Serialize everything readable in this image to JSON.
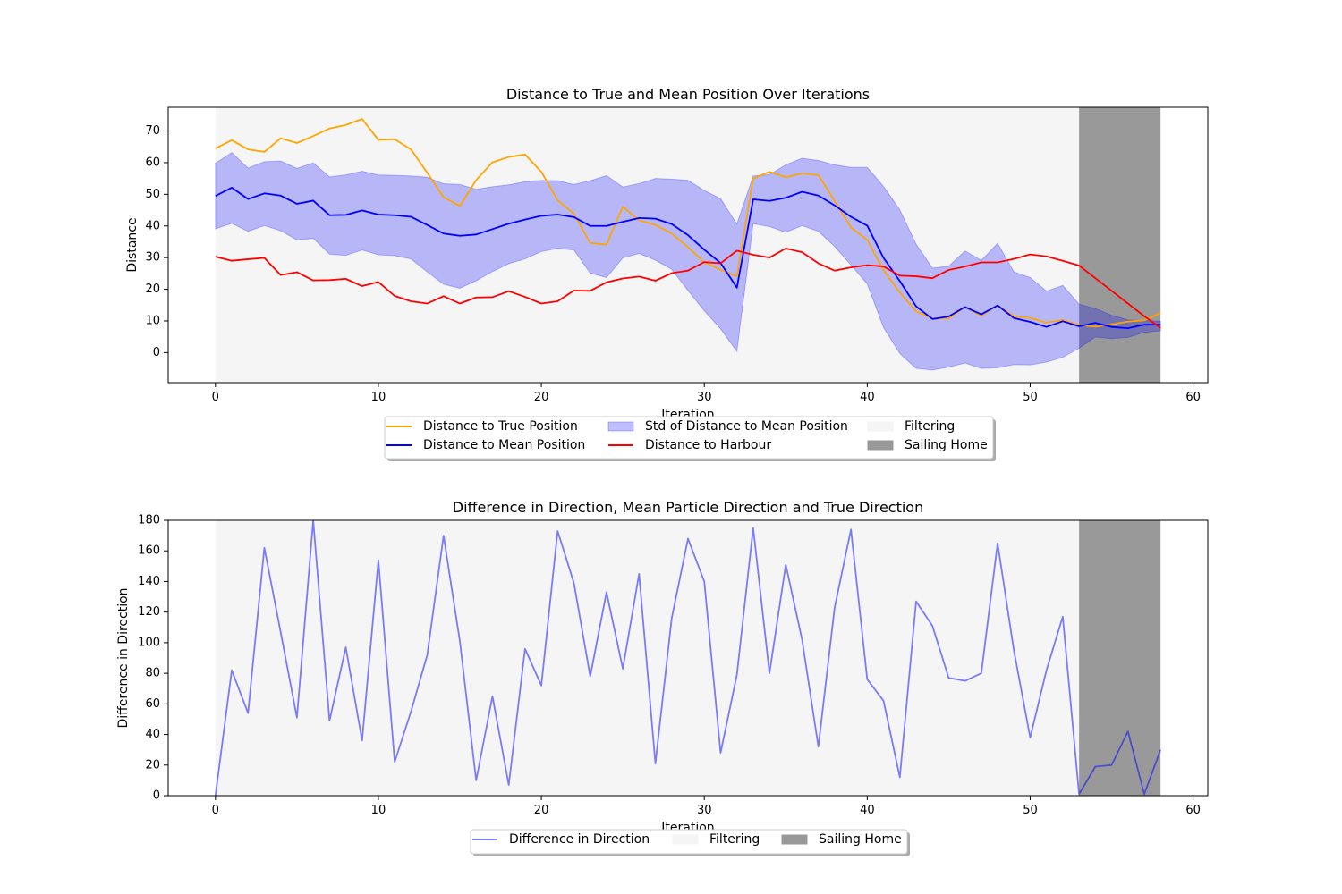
{
  "chart_data": [
    {
      "type": "line",
      "title": "Distance to True and Mean Position Over Iterations",
      "xlabel": "Iteration",
      "ylabel": "Distance",
      "xlim": [
        -2.9,
        60.9
      ],
      "ylim": [
        -9.5,
        77.5
      ],
      "x_ticks": [
        0,
        10,
        20,
        30,
        40,
        50,
        60
      ],
      "y_ticks": [
        0,
        10,
        20,
        30,
        40,
        50,
        60,
        70
      ],
      "grid": false,
      "legend_position": "below-center",
      "x": [
        0,
        1,
        2,
        3,
        4,
        5,
        6,
        7,
        8,
        9,
        10,
        11,
        12,
        13,
        14,
        15,
        16,
        17,
        18,
        19,
        20,
        21,
        22,
        23,
        24,
        25,
        26,
        27,
        28,
        29,
        30,
        31,
        32,
        33,
        34,
        35,
        36,
        37,
        38,
        39,
        40,
        41,
        42,
        43,
        44,
        45,
        46,
        47,
        48,
        49,
        50,
        51,
        52,
        53,
        54,
        55,
        56,
        57,
        58
      ],
      "series": [
        {
          "name": "Distance to True Position",
          "color": "#ffa500",
          "values": [
            64.5,
            67.1,
            64.2,
            63.4,
            67.7,
            66.2,
            68.4,
            70.8,
            71.9,
            73.8,
            67.2,
            67.4,
            64.2,
            56.8,
            49.1,
            46.3,
            54.5,
            60.1,
            61.8,
            62.6,
            57.1,
            48.1,
            43.9,
            34.6,
            34.1,
            46.1,
            41.8,
            40.3,
            37.6,
            33.3,
            28.5,
            26.2,
            24.1,
            55.0,
            57.1,
            55.4,
            56.6,
            56.1,
            47.9,
            39.5,
            35.6,
            26.0,
            19.0,
            13.0,
            10.8,
            10.8,
            14.4,
            11.6,
            14.9,
            11.5,
            10.9,
            9.5,
            10.3,
            8.7,
            8.2,
            8.9,
            9.8,
            10.2,
            12.5
          ]
        },
        {
          "name": "Distance to Mean Position",
          "color": "#0000ff",
          "values": [
            49.5,
            52.1,
            48.5,
            50.3,
            49.6,
            47.0,
            48.0,
            43.4,
            43.5,
            44.9,
            43.6,
            43.4,
            42.9,
            40.3,
            37.6,
            36.9,
            37.3,
            39.0,
            40.7,
            42.0,
            43.2,
            43.6,
            42.8,
            40.0,
            40.0,
            41.3,
            42.5,
            42.3,
            40.6,
            37.1,
            32.5,
            28.3,
            20.5,
            48.4,
            47.9,
            48.9,
            50.8,
            49.6,
            46.5,
            42.9,
            40.1,
            29.9,
            22.6,
            14.6,
            10.6,
            11.4,
            14.4,
            12.1,
            14.9,
            10.9,
            9.7,
            8.1,
            9.9,
            8.3,
            9.4,
            8.1,
            7.7,
            8.8,
            8.8
          ]
        },
        {
          "name": "Distance to Harbour",
          "color": "#ff0000",
          "values": [
            30.3,
            29.0,
            29.5,
            29.9,
            24.5,
            25.4,
            22.8,
            22.9,
            23.3,
            21.0,
            22.3,
            17.9,
            16.2,
            15.5,
            17.8,
            15.5,
            17.4,
            17.5,
            19.4,
            17.6,
            15.5,
            16.2,
            19.6,
            19.5,
            22.2,
            23.4,
            24.0,
            22.7,
            25.1,
            25.9,
            28.6,
            28.2,
            32.2,
            30.9,
            30.0,
            32.9,
            31.7,
            28.2,
            25.9,
            26.9,
            27.6,
            27.2,
            24.3,
            24.1,
            23.5,
            26.1,
            27.2,
            28.5,
            28.5,
            29.6,
            31.0,
            30.4,
            29.0,
            27.5,
            23.5,
            19.5,
            15.5,
            11.5,
            7.8
          ]
        }
      ],
      "bands": [
        {
          "name": "Std of Distance to Mean Position",
          "color": "#0000ff",
          "opacity": 0.25,
          "upper": [
            59.8,
            63.2,
            58.3,
            60.3,
            60.5,
            58.2,
            59.9,
            55.5,
            56.1,
            57.3,
            56.1,
            56.0,
            55.8,
            55.4,
            53.3,
            53.1,
            51.6,
            52.4,
            53.0,
            54.0,
            54.4,
            54.3,
            53.1,
            54.3,
            55.9,
            52.3,
            53.4,
            55.0,
            54.8,
            54.4,
            51.2,
            48.6,
            40.6,
            55.8,
            56.2,
            59.3,
            61.4,
            60.7,
            59.3,
            58.5,
            58.5,
            52.5,
            45.1,
            34.2,
            26.7,
            27.3,
            32.1,
            29.1,
            34.5,
            25.5,
            23.7,
            19.4,
            21.2,
            15.3,
            13.9,
            11.8,
            10.3,
            10.1,
            9.9
          ],
          "lower": [
            39.1,
            40.8,
            38.3,
            40.1,
            38.5,
            35.6,
            36.1,
            31.1,
            30.7,
            32.4,
            30.9,
            30.6,
            29.6,
            25.5,
            21.6,
            20.3,
            22.7,
            25.6,
            28.1,
            29.6,
            31.9,
            32.9,
            32.4,
            25.1,
            23.7,
            29.9,
            31.3,
            29.2,
            26.3,
            19.6,
            13.2,
            7.5,
            0.4,
            40.7,
            39.8,
            38.0,
            40.1,
            38.3,
            33.5,
            27.7,
            21.7,
            7.9,
            -0.3,
            -5.0,
            -5.5,
            -4.6,
            -3.3,
            -5.0,
            -4.8,
            -3.8,
            -3.9,
            -3.0,
            -1.5,
            1.4,
            4.9,
            4.4,
            4.8,
            6.4,
            6.9
          ]
        }
      ],
      "spans": [
        {
          "name": "Filtering",
          "from": 0,
          "to": 53,
          "color": "#f5f5f5"
        },
        {
          "name": "Sailing Home",
          "from": 53,
          "to": 58,
          "color": "#999999"
        }
      ],
      "legend": {
        "columns": [
          [
            "Distance to True Position",
            "Distance to Mean Position"
          ],
          [
            "Std of Distance to Mean Position",
            "Distance to Harbour"
          ],
          [
            "Filtering",
            "Sailing Home"
          ]
        ]
      }
    },
    {
      "type": "line",
      "title": "Difference in Direction, Mean Particle Direction and True Direction",
      "xlabel": "Iteration",
      "ylabel": "Difference in Direction",
      "xlim": [
        -2.9,
        60.9
      ],
      "ylim": [
        0,
        180
      ],
      "x_ticks": [
        0,
        10,
        20,
        30,
        40,
        50,
        60
      ],
      "y_ticks": [
        0,
        20,
        40,
        60,
        80,
        100,
        120,
        140,
        160,
        180
      ],
      "grid": false,
      "legend_position": "below-center",
      "x": [
        0,
        1,
        2,
        3,
        4,
        5,
        6,
        7,
        8,
        9,
        10,
        11,
        12,
        13,
        14,
        15,
        16,
        17,
        18,
        19,
        20,
        21,
        22,
        23,
        24,
        25,
        26,
        27,
        28,
        29,
        30,
        31,
        32,
        33,
        34,
        35,
        36,
        37,
        38,
        39,
        40,
        41,
        42,
        43,
        44,
        45,
        46,
        47,
        48,
        49,
        50,
        51,
        52,
        53,
        54,
        55,
        56,
        57,
        58
      ],
      "series": [
        {
          "name": "Difference in Direction",
          "color": "#0000ff",
          "opacity": 0.5,
          "values": [
            0,
            82,
            54,
            162,
            107,
            51,
            180,
            49,
            97,
            36,
            154,
            22,
            55,
            92,
            170,
            101,
            10,
            65,
            7,
            96,
            72,
            173,
            139,
            78,
            133,
            83,
            145,
            21,
            116,
            168,
            140,
            28,
            79,
            175,
            80,
            151,
            102,
            32,
            123,
            174,
            76,
            62,
            12,
            127,
            111,
            77,
            75,
            80,
            165,
            95,
            38,
            82,
            117,
            1,
            19,
            20,
            42,
            1,
            30
          ]
        }
      ],
      "spans": [
        {
          "name": "Filtering",
          "from": 0,
          "to": 53,
          "color": "#f5f5f5"
        },
        {
          "name": "Sailing Home",
          "from": 53,
          "to": 58,
          "color": "#999999"
        }
      ],
      "legend": {
        "columns": [
          [
            "Difference in Direction"
          ],
          [
            "Filtering"
          ],
          [
            "Sailing Home"
          ]
        ]
      }
    }
  ]
}
